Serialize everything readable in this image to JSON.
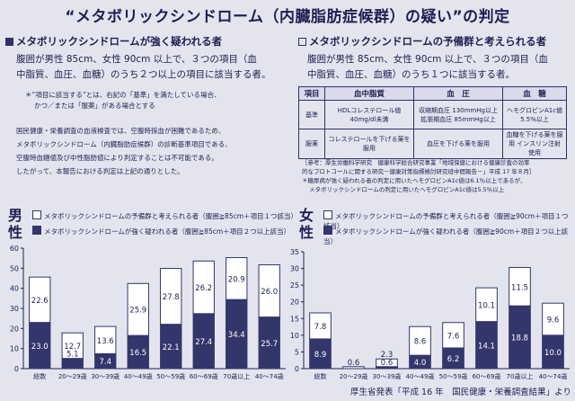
{
  "title": "“メタボリックシンドローム（内臓脂肪症候群）の疑い”の判定",
  "left_section": {
    "heading": "メタボリックシンドロームが強く疑われる者",
    "body_line1": "腹囲が男性 85cm、女性 90cm 以上で、３つの項目（血",
    "body_line2": "中脂質、血圧、血糖）のうち２つ以上の項目に該当する者。",
    "note_line1": "＊“項目に該当する”とは、右記の「基準」を満たしている場合、",
    "note_line2": "かつ／または「服薬」がある場合とする",
    "para_line1": "国民健康・栄養調査の血液検査では、空腹時採血が困難であるため、",
    "para_line2": "メタボリックシンドローム（内臓脂肪症候群）の診断基準項目である、",
    "para_line3": "空腹時血糖値及び中性脂肪値により判定することは不可能である。",
    "para_line4": "したがって、本報告における判定は上記の通りとした。"
  },
  "right_section": {
    "heading": "メタボリックシンドロームの予備群と考えられる者",
    "body_line1": "腹囲が男性 85cm、女性 90cm 以上で、３つの項目（血",
    "body_line2": "中脂質、血圧、血糖）のうち１つに該当する者。",
    "table": {
      "headers": [
        "項目",
        "血中脂質",
        "血　圧",
        "血　糖"
      ],
      "rows": [
        {
          "label": "基準",
          "c1": "HDLコレステロール値 40mg/dl未満",
          "c2": "収縮期血圧 130mmHg以上 拡張期血圧 85mmHg以上",
          "c3": "ヘモグロビンA1c値 5.5%以上"
        },
        {
          "label": "服薬",
          "c1": "コレステロールを下げる薬を服用",
          "c2": "血圧を下げる薬を服用",
          "c3": "血糖を下げる薬を服用 インスリン注射使用"
        }
      ]
    },
    "source_line1": "［参考：厚生労働科学研究　健康科学総合研究事業「地域保健における健康診査の効率",
    "source_line2": "的なプロトコールに関する研究－健康対策指標検討研究班中間報告－」平成 17 年８月］",
    "source_line3": "＊糖尿病が強く疑われる者の判定に用いたヘモグロビンA1c値は6.1％以上であるが、",
    "source_line4": "メタボリックシンドロームの判定に用いたヘモグロビンA1c値は5.5％以上"
  },
  "legend": {
    "reserve_male": "メタボリックシンドロームの予備群と考えられる者（腹囲≧85cm＋項目１つ該当）",
    "strong_male": "メタボリックシンドロームが強く疑われる者（腹囲≧85cm＋項目２つ以上該当）",
    "reserve_female": "メタボリックシンドロームの予備群と考えられる者（腹囲≧90cm＋項目１つ該当）",
    "strong_female": "メタボリックシンドロームが強く疑われる者（腹囲≧90cm＋項目２つ以上該当）"
  },
  "male_label": "男性",
  "female_label": "女性",
  "footer": "厚生省発表「平成 16 年　国民健康・栄養調査結果」より",
  "colors": {
    "strong": "#33366b",
    "reserve": "#ffffff",
    "ink": "#1e1f52"
  },
  "chart_data": [
    {
      "type": "bar",
      "stacked": true,
      "title": "男性",
      "categories": [
        "総数",
        "20～29歳",
        "30～39歳",
        "40～49歳",
        "50～59歳",
        "60～69歳",
        "70歳以上",
        "40～74歳"
      ],
      "series": [
        {
          "name": "メタボリックシンドロームが強く疑われる者（腹囲≧85cm＋項目２つ以上該当）",
          "values": [
            23.0,
            5.1,
            7.4,
            16.5,
            22.1,
            27.4,
            34.4,
            25.7
          ]
        },
        {
          "name": "メタボリックシンドロームの予備群と考えられる者（腹囲≧85cm＋項目１つ該当）",
          "values": [
            22.6,
            12.7,
            13.6,
            25.9,
            27.8,
            26.2,
            20.9,
            26.0
          ]
        }
      ],
      "ylim": [
        0,
        60
      ],
      "yticks": [
        0,
        10,
        20,
        30,
        40,
        50,
        60
      ],
      "grid": false
    },
    {
      "type": "bar",
      "stacked": true,
      "title": "女性",
      "categories": [
        "総数",
        "20～29歳",
        "30～39歳",
        "40～49歳",
        "50～59歳",
        "60～69歳",
        "70歳以上",
        "40～74歳"
      ],
      "series": [
        {
          "name": "メタボリックシンドロームが強く疑われる者（腹囲≧90cm＋項目２つ以上該当）",
          "values": [
            8.9,
            0.0,
            0.6,
            4.0,
            6.2,
            14.1,
            18.8,
            10.0
          ]
        },
        {
          "name": "メタボリックシンドロームの予備群と考えられる者（腹囲≧90cm＋項目１つ該当）",
          "values": [
            7.8,
            0.6,
            2.3,
            8.6,
            7.6,
            10.1,
            11.5,
            9.6
          ]
        }
      ],
      "ylim": [
        0,
        35
      ],
      "yticks": [
        0,
        5,
        10,
        15,
        20,
        25,
        30,
        35
      ],
      "grid": false
    }
  ]
}
